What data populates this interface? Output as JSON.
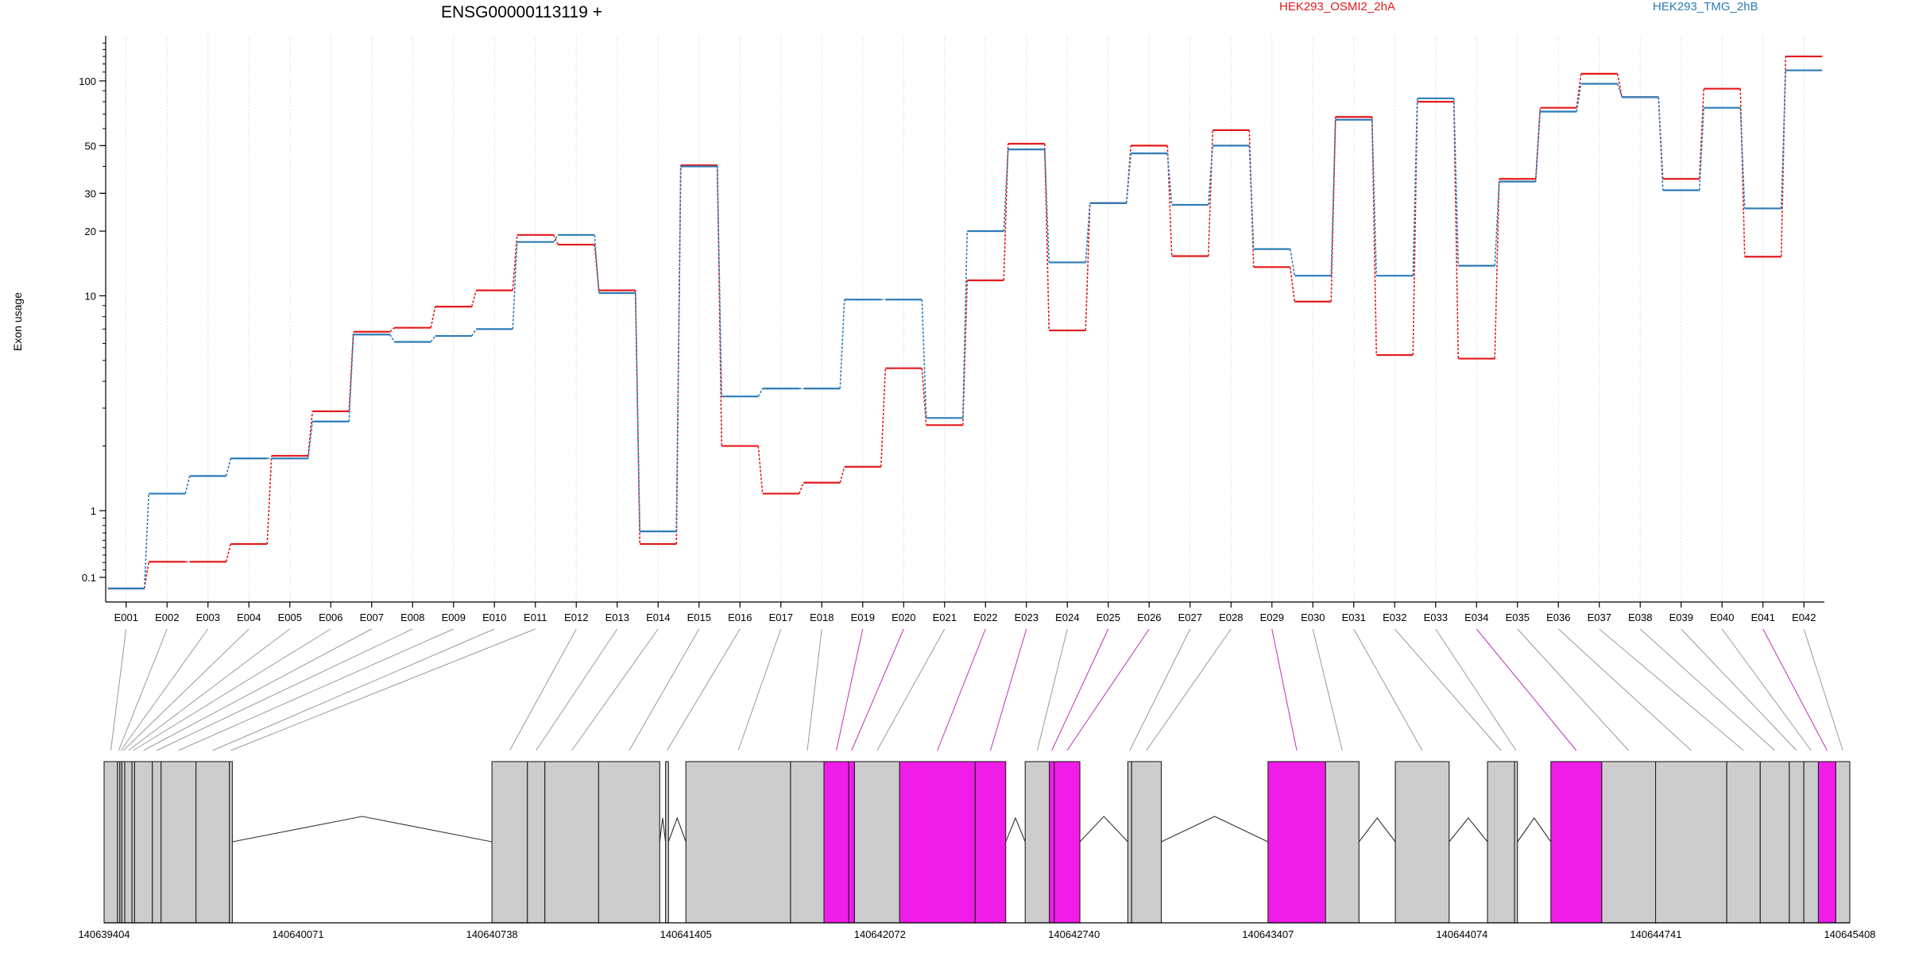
{
  "chart_data": {
    "type": "line",
    "title": "ENSG00000113119 +",
    "ylabel": "Exon usage",
    "y_scale": "log (offset near 0)",
    "yticks": [
      0.1,
      1,
      10,
      20,
      30,
      50,
      100
    ],
    "ylim": [
      0.07,
      160
    ],
    "grid": "vertical dashed lines at each exon",
    "legend_placement": "top",
    "colors": {
      "OSMI2": "#e31a1c",
      "TMG": "#2c7bb6",
      "exon_highlight": "#f01ce8",
      "exon": "#cccccc",
      "link": "#999999",
      "link_highlight": "#bb33bb"
    },
    "categories": [
      "E001",
      "E002",
      "E003",
      "E004",
      "E005",
      "E006",
      "E007",
      "E008",
      "E009",
      "E010",
      "E011",
      "E012",
      "E013",
      "E014",
      "E015",
      "E016",
      "E017",
      "E018",
      "E019",
      "E020",
      "E021",
      "E022",
      "E023",
      "E024",
      "E025",
      "E026",
      "E027",
      "E028",
      "E029",
      "E030",
      "E031",
      "E032",
      "E033",
      "E034",
      "E035",
      "E036",
      "E037",
      "E038",
      "E039",
      "E040",
      "E041",
      "E042"
    ],
    "series": [
      {
        "name": "HEK293_OSMI2_2hA",
        "color": "#e31a1c",
        "values": [
          0.07,
          0.31,
          0.31,
          0.55,
          1.8,
          2.9,
          6.8,
          7.1,
          8.9,
          10.6,
          19.2,
          17.3,
          10.6,
          0.55,
          40.5,
          2.0,
          1.2,
          1.35,
          1.6,
          4.6,
          2.5,
          11.8,
          51,
          6.9,
          27,
          50,
          15.3,
          59,
          13.6,
          9.4,
          68,
          5.3,
          80,
          5.1,
          35,
          75,
          108,
          84,
          35,
          92,
          15.2,
          130
        ]
      },
      {
        "name": "HEK293_TMG_2hB",
        "color": "#2c7bb6",
        "values": [
          0.07,
          1.2,
          1.45,
          1.75,
          1.75,
          2.6,
          6.6,
          6.1,
          6.5,
          7.0,
          17.8,
          19.2,
          10.3,
          0.72,
          40,
          3.4,
          3.7,
          3.7,
          9.6,
          9.6,
          2.7,
          20,
          48,
          14.3,
          27,
          46,
          26.5,
          50,
          16.5,
          12.4,
          66,
          12.4,
          83,
          13.8,
          34,
          72,
          97,
          84,
          31,
          75,
          25.5,
          112
        ]
      }
    ],
    "highlighted_exons": [
      "E019",
      "E020",
      "E022",
      "E023",
      "E025",
      "E026",
      "E029",
      "E034",
      "E041"
    ],
    "genomic_axis": {
      "start": 140639404,
      "end": 140645408,
      "ticks": [
        "140639404",
        "140640071",
        "140640738",
        "140641405",
        "140642072",
        "140642740",
        "140643407",
        "140644074",
        "140644741",
        "140645408"
      ]
    }
  }
}
